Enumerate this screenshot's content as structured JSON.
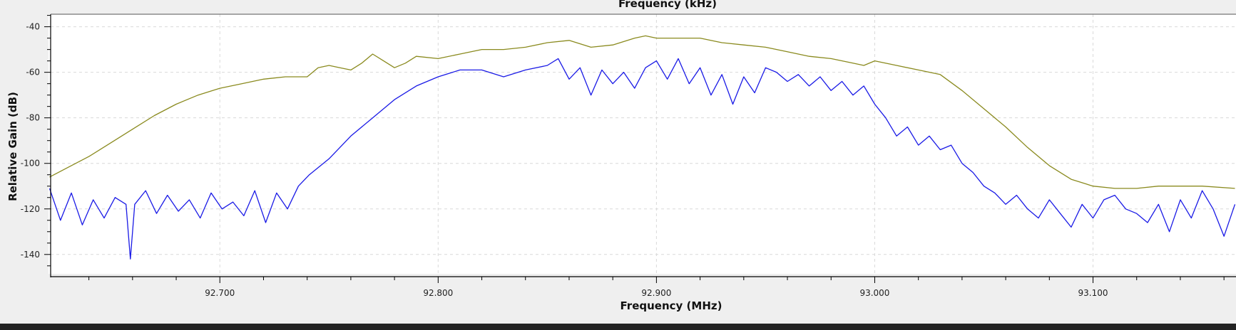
{
  "chart_data": {
    "type": "line",
    "top_axis_title": "Frequency (kHz)",
    "xlabel": "Frequency (MHz)",
    "ylabel": "Relative Gain (dB)",
    "xlim": [
      92.6215,
      93.1655
    ],
    "ylim": [
      -148.5,
      -34.5
    ],
    "grid": true,
    "legend": "none",
    "x_ticks": [
      {
        "value": 92.7,
        "label": "92.700"
      },
      {
        "value": 92.8,
        "label": "92.800"
      },
      {
        "value": 92.9,
        "label": "92.900"
      },
      {
        "value": 93.0,
        "label": "93.000"
      },
      {
        "value": 93.1,
        "label": "93.100"
      }
    ],
    "y_ticks": [
      {
        "value": -40,
        "label": "-40"
      },
      {
        "value": -60,
        "label": "-60"
      },
      {
        "value": -80,
        "label": "-80"
      },
      {
        "value": -100,
        "label": "-100"
      },
      {
        "value": -120,
        "label": "-120"
      },
      {
        "value": -140,
        "label": "-140"
      }
    ],
    "colors": {
      "plot_background": "#ffffff",
      "grid": "#d9d9d9",
      "series_olive": "#8a8a1e",
      "series_blue": "#1a1ae6"
    },
    "series": [
      {
        "key": "olive",
        "x": [
          92.622,
          92.63,
          92.64,
          92.65,
          92.66,
          92.67,
          92.68,
          92.69,
          92.7,
          92.71,
          92.72,
          92.73,
          92.74,
          92.745,
          92.75,
          92.755,
          92.76,
          92.765,
          92.77,
          92.775,
          92.78,
          92.785,
          92.79,
          92.8,
          92.81,
          92.82,
          92.83,
          92.84,
          92.85,
          92.86,
          92.87,
          92.88,
          92.89,
          92.895,
          92.9,
          92.91,
          92.92,
          92.93,
          92.94,
          92.95,
          92.96,
          92.97,
          92.98,
          92.99,
          92.995,
          93.0,
          93.01,
          93.02,
          93.03,
          93.04,
          93.05,
          93.06,
          93.07,
          93.08,
          93.09,
          93.1,
          93.11,
          93.12,
          93.13,
          93.14,
          93.15,
          93.165
        ],
        "y": [
          -106,
          -102,
          -97,
          -91,
          -85,
          -79,
          -74,
          -70,
          -67,
          -65,
          -63,
          -62,
          -62,
          -58,
          -57,
          -58,
          -59,
          -56,
          -52,
          -55,
          -58,
          -56,
          -53,
          -54,
          -52,
          -50,
          -50,
          -49,
          -47,
          -46,
          -49,
          -48,
          -45,
          -44,
          -45,
          -45,
          -45,
          -47,
          -48,
          -49,
          -51,
          -53,
          -54,
          -56,
          -57,
          -55,
          -57,
          -59,
          -61,
          -68,
          -76,
          -84,
          -93,
          -101,
          -107,
          -110,
          -111,
          -111,
          -110,
          -110,
          -110,
          -111
        ]
      },
      {
        "key": "blue",
        "x": [
          92.622,
          92.627,
          92.632,
          92.637,
          92.642,
          92.647,
          92.652,
          92.657,
          92.659,
          92.661,
          92.666,
          92.671,
          92.676,
          92.681,
          92.686,
          92.691,
          92.696,
          92.701,
          92.706,
          92.711,
          92.716,
          92.721,
          92.726,
          92.731,
          92.736,
          92.741,
          92.75,
          92.76,
          92.77,
          92.78,
          92.79,
          92.8,
          92.81,
          92.82,
          92.83,
          92.84,
          92.85,
          92.855,
          92.86,
          92.865,
          92.87,
          92.875,
          92.88,
          92.885,
          92.89,
          92.895,
          92.9,
          92.905,
          92.91,
          92.915,
          92.92,
          92.925,
          92.93,
          92.935,
          92.94,
          92.945,
          92.95,
          92.955,
          92.96,
          92.965,
          92.97,
          92.975,
          92.98,
          92.985,
          92.99,
          92.995,
          93.0,
          93.005,
          93.01,
          93.015,
          93.02,
          93.025,
          93.03,
          93.035,
          93.04,
          93.045,
          93.05,
          93.055,
          93.06,
          93.065,
          93.07,
          93.075,
          93.08,
          93.085,
          93.09,
          93.095,
          93.1,
          93.105,
          93.11,
          93.115,
          93.12,
          93.125,
          93.13,
          93.135,
          93.14,
          93.145,
          93.15,
          93.155,
          93.16,
          93.165
        ],
        "y": [
          -111,
          -125,
          -113,
          -127,
          -116,
          -124,
          -115,
          -118,
          -142,
          -118,
          -112,
          -122,
          -114,
          -121,
          -116,
          -124,
          -113,
          -120,
          -117,
          -123,
          -112,
          -126,
          -113,
          -120,
          -110,
          -105,
          -98,
          -88,
          -80,
          -72,
          -66,
          -62,
          -59,
          -59,
          -62,
          -59,
          -57,
          -54,
          -63,
          -58,
          -70,
          -59,
          -65,
          -60,
          -67,
          -58,
          -55,
          -63,
          -54,
          -65,
          -58,
          -70,
          -61,
          -74,
          -62,
          -69,
          -58,
          -60,
          -64,
          -61,
          -66,
          -62,
          -68,
          -64,
          -70,
          -66,
          -74,
          -80,
          -88,
          -84,
          -92,
          -88,
          -94,
          -92,
          -100,
          -104,
          -110,
          -113,
          -118,
          -114,
          -120,
          -124,
          -116,
          -122,
          -128,
          -118,
          -124,
          -116,
          -114,
          -120,
          -122,
          -126,
          -118,
          -130,
          -116,
          -124,
          -112,
          -120,
          -132,
          -118
        ]
      }
    ]
  }
}
